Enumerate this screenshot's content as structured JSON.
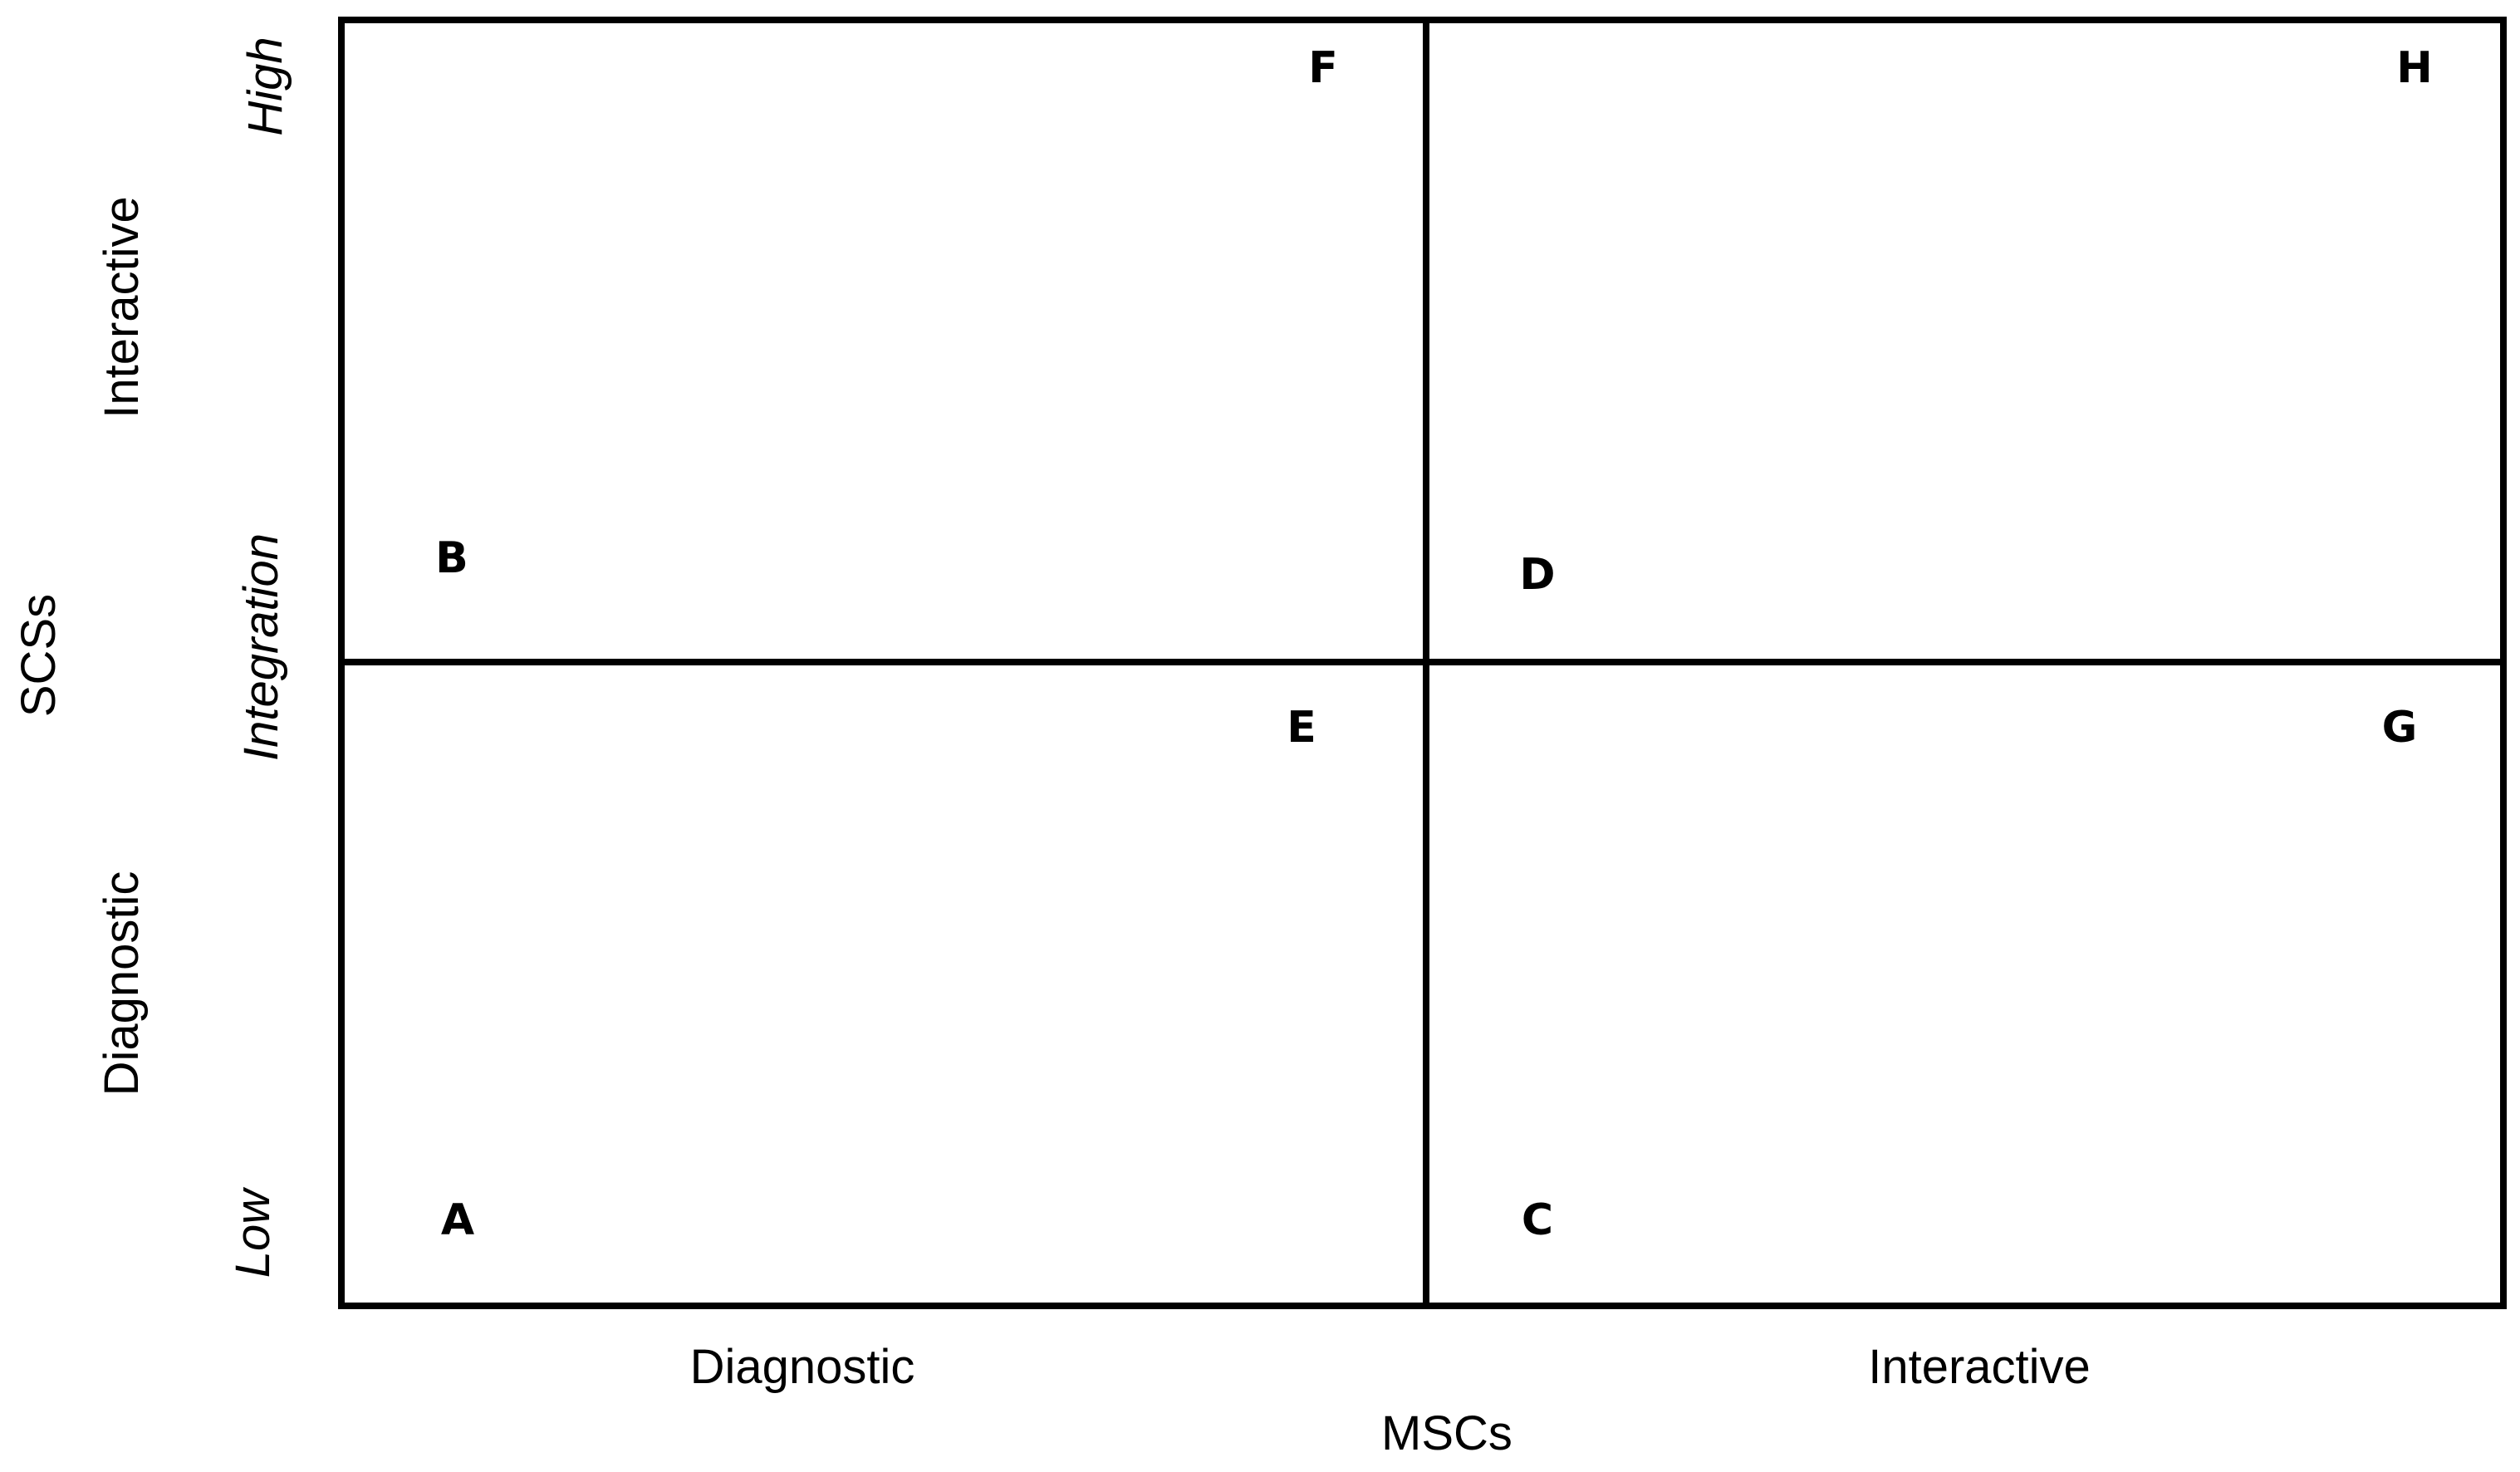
{
  "x_axis": {
    "title": "MSCs",
    "categories": [
      "Diagnostic",
      "Interactive"
    ]
  },
  "y_axis": {
    "title": "SCSs",
    "categories": [
      "Diagnostic",
      "Interactive"
    ],
    "scale_labels": {
      "low": "Low",
      "mid": "Integration",
      "high": "High"
    }
  },
  "points": [
    {
      "label": "A",
      "quadrant": "diagnostic-diagnostic",
      "level": "low"
    },
    {
      "label": "B",
      "quadrant": "diagnostic-interactive",
      "level": "low"
    },
    {
      "label": "C",
      "quadrant": "interactive-diagnostic",
      "level": "low"
    },
    {
      "label": "D",
      "quadrant": "interactive-interactive",
      "level": "low"
    },
    {
      "label": "E",
      "quadrant": "diagnostic-diagnostic",
      "level": "high"
    },
    {
      "label": "F",
      "quadrant": "diagnostic-interactive",
      "level": "high"
    },
    {
      "label": "G",
      "quadrant": "interactive-diagnostic",
      "level": "high"
    },
    {
      "label": "H",
      "quadrant": "interactive-interactive",
      "level": "high"
    }
  ]
}
